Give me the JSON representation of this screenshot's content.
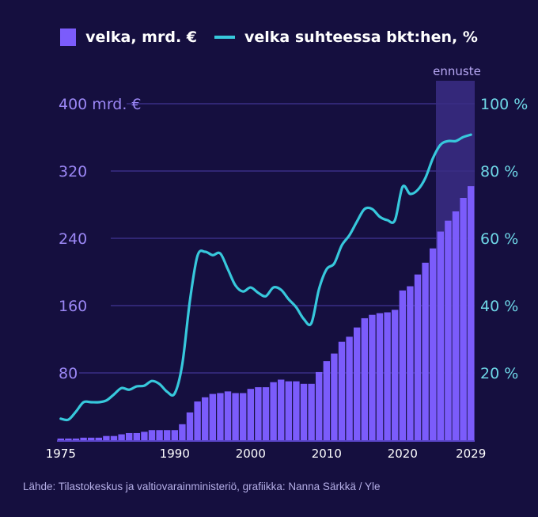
{
  "legend": {
    "bars_label": "velka, mrd. €",
    "line_label": "velka suhteessa bkt:hen, %"
  },
  "forecast_label": "ennuste",
  "footer": "Lähde: Tilastokeskus ja valtiovarainministeriö, grafiikka: Nanna Särkkä / Yle",
  "colors": {
    "background": "#150f3f",
    "bars": "#7b5cfb",
    "line": "#37c8dc",
    "left_axis": "#9b87f5",
    "right_axis": "#6ed6e6",
    "grid": "#3a2f86",
    "forecast_band": "#3a2d85"
  },
  "chart_data": {
    "type": "bar+line",
    "title": "",
    "x": [
      1975,
      1976,
      1977,
      1978,
      1979,
      1980,
      1981,
      1982,
      1983,
      1984,
      1985,
      1986,
      1987,
      1988,
      1989,
      1990,
      1991,
      1992,
      1993,
      1994,
      1995,
      1996,
      1997,
      1998,
      1999,
      2000,
      2001,
      2002,
      2003,
      2004,
      2005,
      2006,
      2007,
      2008,
      2009,
      2010,
      2011,
      2012,
      2013,
      2014,
      2015,
      2016,
      2017,
      2018,
      2019,
      2020,
      2021,
      2022,
      2023,
      2024,
      2025,
      2026,
      2027,
      2028,
      2029
    ],
    "x_tick_labels": [
      "1975",
      "1990",
      "2000",
      "2010",
      "2020",
      "2029"
    ],
    "forecast_from": 2025,
    "series": [
      {
        "name": "velka, mrd. €",
        "type": "bar",
        "axis": "left",
        "values": [
          2,
          2,
          2,
          3,
          3,
          3,
          5,
          5,
          7,
          8.5,
          8.5,
          10,
          12,
          12,
          12,
          12,
          19,
          33,
          46,
          51,
          55,
          56,
          58,
          56,
          56,
          61,
          63,
          63,
          69,
          72,
          70,
          70,
          67,
          67,
          81,
          94,
          103,
          117,
          123,
          134,
          145,
          149,
          151,
          152,
          155,
          178,
          183,
          197,
          211,
          228,
          248,
          261,
          272,
          288,
          302
        ]
      },
      {
        "name": "velka suhteessa bkt:hen, %",
        "type": "line",
        "axis": "right",
        "values": [
          6.4,
          6.1,
          8.5,
          11.3,
          11.3,
          11.3,
          11.8,
          13.6,
          15.5,
          15,
          16,
          16.2,
          17.6,
          16.7,
          14.4,
          13.9,
          22.6,
          41.4,
          54.8,
          56,
          55,
          55.5,
          50.8,
          46,
          44.2,
          45.4,
          43.8,
          42.8,
          45.4,
          44.7,
          41.9,
          39.5,
          36,
          34.8,
          44.9,
          50.8,
          52.5,
          57.9,
          60.9,
          65,
          68.7,
          68.7,
          66.4,
          65.4,
          65.4,
          75.3,
          73.2,
          74.4,
          77.9,
          83.8,
          87.8,
          88.9,
          88.9,
          90.1,
          90.8
        ]
      }
    ],
    "left_axis": {
      "ylim": [
        0,
        400
      ],
      "tick_labels": [
        "80",
        "160",
        "240",
        "320",
        "400 mrd. €"
      ],
      "ticks": [
        80,
        160,
        240,
        320,
        400
      ]
    },
    "right_axis": {
      "ylim": [
        0,
        100
      ],
      "tick_labels": [
        "20 %",
        "40 %",
        "60 %",
        "80 %",
        "100 %"
      ],
      "ticks": [
        20,
        40,
        60,
        80,
        100
      ]
    },
    "grid": true,
    "legend_position": "top-center"
  }
}
